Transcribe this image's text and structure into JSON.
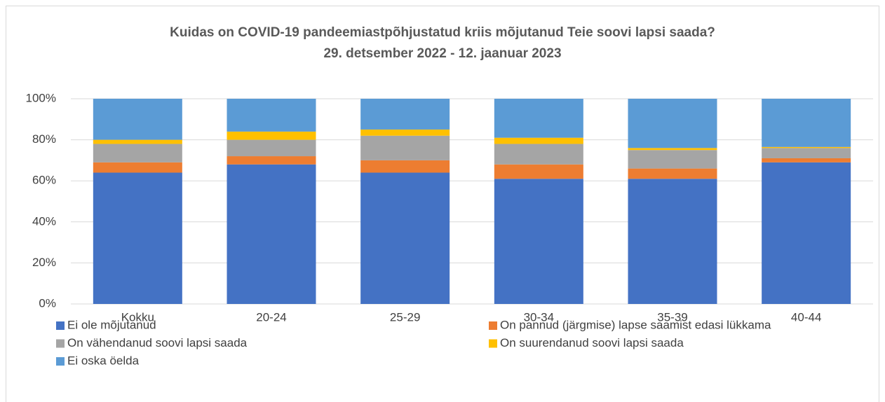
{
  "chart_data": {
    "type": "stacked_bar",
    "title": "Kuidas on COVID-19 pandeemiastpõhjustatud kriis mõjutanud Teie soovi lapsi saada?",
    "subtitle": "29. detsember 2022 - 12. jaanuar 2023",
    "categories": [
      "Kokku",
      "20-24",
      "25-29",
      "30-34",
      "35-39",
      "40-44"
    ],
    "series": [
      {
        "name": "Ei ole mõjutanud",
        "color": "#4472c4",
        "values": [
          64,
          68,
          64,
          61,
          61,
          69
        ]
      },
      {
        "name": "On pannud (järgmise) lapse saamist edasi lükkama",
        "color": "#ed7d31",
        "values": [
          5,
          4,
          6,
          7,
          5,
          2
        ]
      },
      {
        "name": "On vähendanud soovi lapsi saada",
        "color": "#a5a5a5",
        "values": [
          9,
          8,
          12,
          10,
          9,
          5
        ]
      },
      {
        "name": "On suurendanud soovi lapsi saada",
        "color": "#ffc000",
        "values": [
          2,
          4,
          3,
          3,
          1,
          0.5
        ]
      },
      {
        "name": "Ei oska öelda",
        "color": "#5b9bd5",
        "values": [
          20,
          16,
          15,
          19,
          24,
          23.5
        ]
      }
    ],
    "ylim": [
      0,
      100
    ],
    "yticks": [
      {
        "value": 0,
        "label": "0%"
      },
      {
        "value": 20,
        "label": "20%"
      },
      {
        "value": 40,
        "label": "40%"
      },
      {
        "value": 60,
        "label": "60%"
      },
      {
        "value": 80,
        "label": "80%"
      },
      {
        "value": 100,
        "label": "100%"
      }
    ],
    "grid": true
  }
}
